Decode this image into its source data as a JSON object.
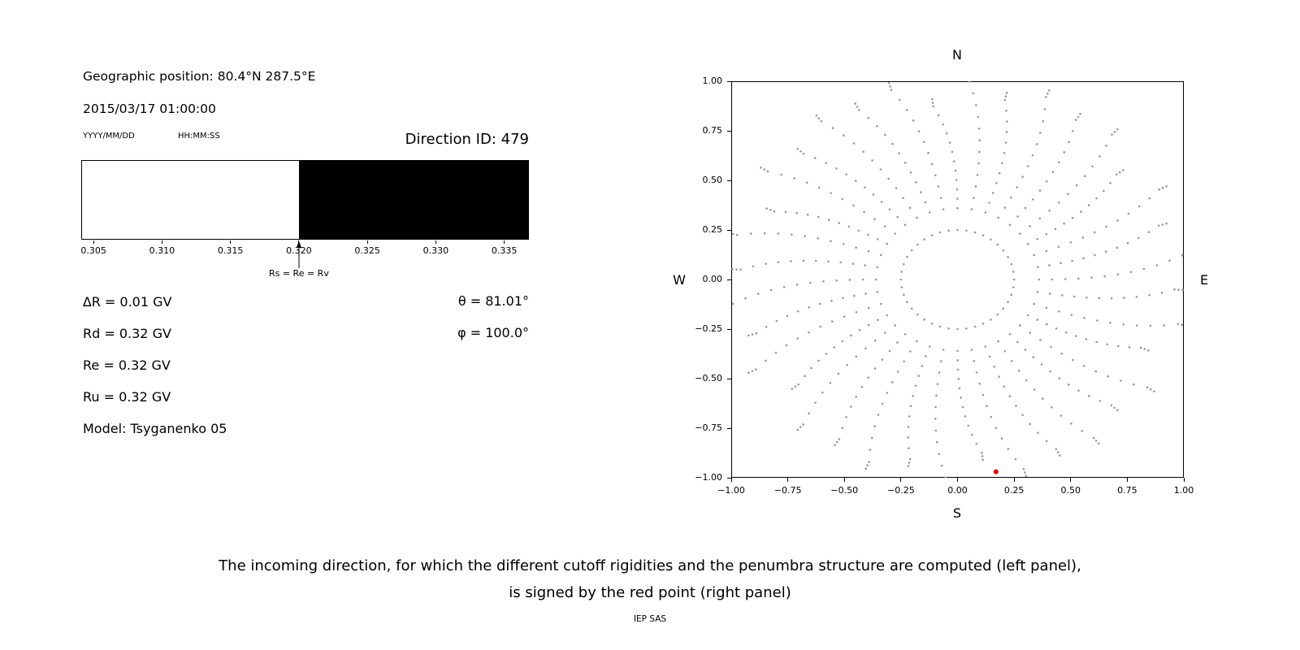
{
  "left_panel": {
    "geo_position": "Geographic position: 80.4°N 287.5°E",
    "datetime": "2015/03/17 01:00:00",
    "date_format_label": "YYYY/MM/DD",
    "time_format_label": "HH:MM:SS",
    "direction_id": "Direction ID: 479",
    "values": [
      "∆R = 0.01 GV",
      "Rd = 0.32 GV",
      "Re = 0.32 GV",
      "Ru = 0.32 GV",
      "Model: Tsyganenko 05"
    ],
    "theta": "θ = 81.01°",
    "phi": "φ = 100.0°"
  },
  "caption": {
    "line1": "The incoming direction, for which the different cutoff rigidities and the penumbra structure are computed (left panel),",
    "line2": "is signed by the red point (right panel)",
    "credit": "IEP SAS"
  },
  "chart_data": [
    {
      "id": "penumbra",
      "type": "bar",
      "xlim": [
        0.3041,
        0.3368
      ],
      "x_tick_values": [
        0.305,
        0.31,
        0.315,
        0.32,
        0.325,
        0.33,
        0.335
      ],
      "x_tick_labels": [
        "0.305",
        "0.310",
        "0.315",
        "0.320",
        "0.325",
        "0.330",
        "0.335"
      ],
      "allowed_region": [
        0.3041,
        0.32
      ],
      "forbidden_region": [
        0.32,
        0.3368
      ],
      "region_colors": {
        "allowed": "#ffffff",
        "forbidden": "#000000"
      },
      "arrow_x": 0.32,
      "arrow_label": "Rs = Re = Rv"
    },
    {
      "id": "direction-map",
      "type": "scatter",
      "xlim": [
        -1,
        1
      ],
      "ylim": [
        -1,
        1
      ],
      "x_tick_values": [
        -1,
        -0.75,
        -0.5,
        -0.25,
        0,
        0.25,
        0.5,
        0.75,
        1
      ],
      "x_tick_labels": [
        "−1.00",
        "−0.75",
        "−0.50",
        "−0.25",
        "0.00",
        "0.25",
        "0.50",
        "0.75",
        "1.00"
      ],
      "y_tick_values": [
        1,
        0.75,
        0.5,
        0.25,
        0,
        -0.25,
        -0.5,
        -0.75,
        -1
      ],
      "y_tick_labels": [
        "1.00",
        "0.75",
        "0.50",
        "0.25",
        "0.00",
        "−0.25",
        "−0.50",
        "−0.75",
        "−1.00"
      ],
      "compass": {
        "top": "N",
        "bottom": "S",
        "left": "W",
        "right": "E"
      },
      "dot_color": "#999999",
      "pattern": {
        "num_spokes": 36,
        "angle_step_deg": 10,
        "r_start": 0.36,
        "r_end_cycle": [
          1.0,
          0.93,
          1.0,
          0.88,
          1.0,
          0.96
        ],
        "dots_per_spoke": 12,
        "bend_deg": 7,
        "tip_extra_dots": 2,
        "tip_spacing": 0.018,
        "inner_ring_radius": 0.25,
        "inner_ring_count": 40
      },
      "red_point": {
        "x": 0.17,
        "y": -0.97,
        "color": "#e50000"
      }
    }
  ]
}
